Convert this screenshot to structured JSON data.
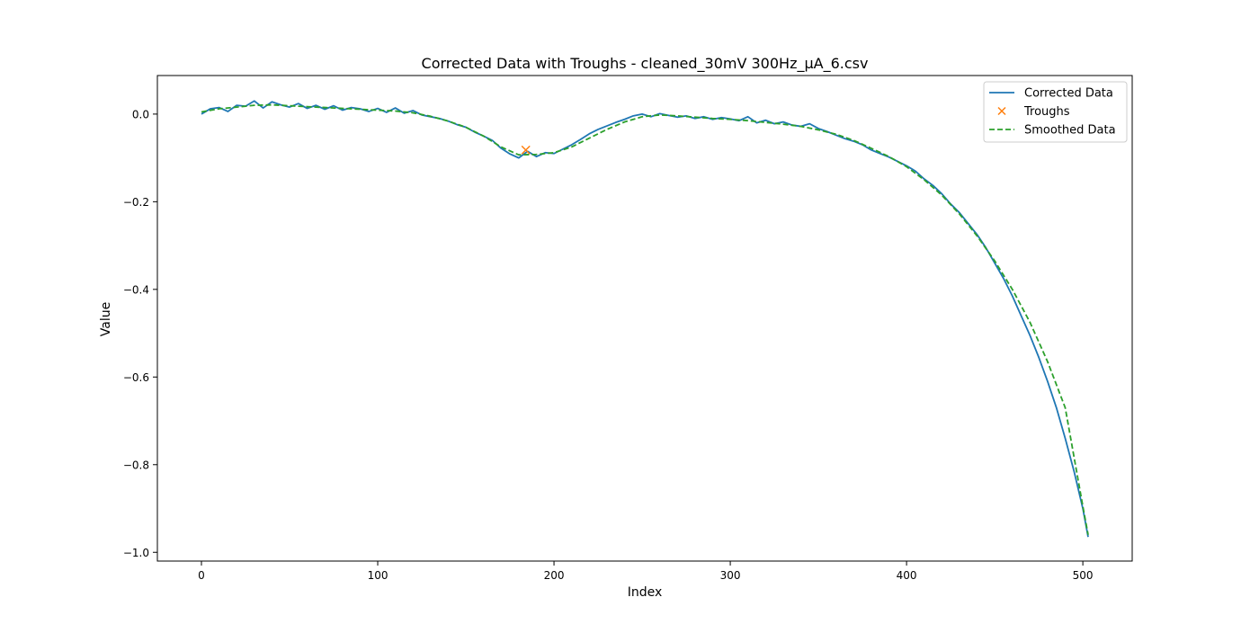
{
  "chart_data": {
    "type": "line",
    "title": "Corrected Data with Troughs - cleaned_30mV 300Hz_µA_6.csv",
    "xlabel": "Index",
    "ylabel": "Value",
    "xlim": [
      -25,
      528
    ],
    "ylim": [
      -1.02,
      0.088
    ],
    "xticks": [
      0,
      100,
      200,
      300,
      400,
      500
    ],
    "yticks": [
      0.0,
      -0.2,
      -0.4,
      -0.6,
      -0.8,
      -1.0
    ],
    "xtick_labels": [
      "0",
      "100",
      "200",
      "300",
      "400",
      "500"
    ],
    "ytick_labels": [
      "0.0",
      "−0.2",
      "−0.4",
      "−0.6",
      "−0.8",
      "−1.0"
    ],
    "grid": false,
    "legend_position": "top-right",
    "series": [
      {
        "name": "Corrected Data",
        "style": "solid",
        "color": "#1f77b4",
        "x": [
          0,
          5,
          10,
          15,
          20,
          25,
          30,
          35,
          40,
          45,
          50,
          55,
          60,
          65,
          70,
          75,
          80,
          85,
          90,
          95,
          100,
          105,
          110,
          115,
          120,
          125,
          130,
          135,
          140,
          145,
          150,
          155,
          160,
          165,
          170,
          175,
          180,
          185,
          190,
          195,
          200,
          205,
          210,
          215,
          220,
          225,
          230,
          235,
          240,
          245,
          250,
          255,
          260,
          265,
          270,
          275,
          280,
          285,
          290,
          295,
          300,
          305,
          310,
          315,
          320,
          325,
          330,
          335,
          340,
          345,
          350,
          355,
          360,
          365,
          370,
          375,
          380,
          385,
          390,
          395,
          400,
          405,
          410,
          415,
          420,
          425,
          430,
          435,
          440,
          445,
          450,
          455,
          460,
          465,
          470,
          475,
          480,
          485,
          490,
          495,
          500,
          503
        ],
        "y": [
          0.0,
          0.012,
          0.015,
          0.006,
          0.02,
          0.018,
          0.03,
          0.014,
          0.028,
          0.021,
          0.016,
          0.024,
          0.013,
          0.02,
          0.011,
          0.019,
          0.009,
          0.015,
          0.012,
          0.006,
          0.013,
          0.004,
          0.014,
          0.002,
          0.008,
          -0.002,
          -0.006,
          -0.01,
          -0.016,
          -0.024,
          -0.03,
          -0.041,
          -0.05,
          -0.06,
          -0.078,
          -0.091,
          -0.1,
          -0.085,
          -0.097,
          -0.088,
          -0.09,
          -0.08,
          -0.07,
          -0.058,
          -0.045,
          -0.035,
          -0.027,
          -0.019,
          -0.012,
          -0.004,
          0.0,
          -0.006,
          0.001,
          -0.003,
          -0.007,
          -0.004,
          -0.01,
          -0.006,
          -0.012,
          -0.008,
          -0.011,
          -0.015,
          -0.006,
          -0.02,
          -0.014,
          -0.022,
          -0.018,
          -0.025,
          -0.028,
          -0.022,
          -0.033,
          -0.04,
          -0.048,
          -0.056,
          -0.062,
          -0.07,
          -0.082,
          -0.09,
          -0.098,
          -0.108,
          -0.118,
          -0.13,
          -0.148,
          -0.163,
          -0.182,
          -0.205,
          -0.225,
          -0.25,
          -0.275,
          -0.305,
          -0.34,
          -0.375,
          -0.415,
          -0.46,
          -0.505,
          -0.555,
          -0.61,
          -0.67,
          -0.74,
          -0.815,
          -0.9,
          -0.965
        ]
      },
      {
        "name": "Troughs",
        "style": "marker-x",
        "color": "#ff7f0e",
        "x": [
          184
        ],
        "y": [
          -0.082
        ]
      },
      {
        "name": "Smoothed Data",
        "style": "dashed",
        "color": "#2ca02c",
        "x": [
          0,
          10,
          20,
          30,
          40,
          50,
          60,
          70,
          80,
          90,
          100,
          110,
          120,
          130,
          140,
          150,
          160,
          170,
          180,
          190,
          200,
          210,
          220,
          230,
          240,
          250,
          260,
          270,
          280,
          290,
          300,
          310,
          320,
          330,
          340,
          350,
          360,
          370,
          380,
          390,
          400,
          410,
          420,
          430,
          440,
          450,
          460,
          470,
          480,
          490,
          500,
          503
        ],
        "y": [
          0.005,
          0.012,
          0.016,
          0.02,
          0.021,
          0.019,
          0.017,
          0.015,
          0.013,
          0.011,
          0.009,
          0.007,
          0.003,
          -0.005,
          -0.016,
          -0.03,
          -0.05,
          -0.075,
          -0.093,
          -0.092,
          -0.088,
          -0.075,
          -0.055,
          -0.035,
          -0.018,
          -0.006,
          -0.002,
          -0.004,
          -0.007,
          -0.01,
          -0.012,
          -0.015,
          -0.019,
          -0.023,
          -0.028,
          -0.036,
          -0.046,
          -0.06,
          -0.078,
          -0.097,
          -0.12,
          -0.15,
          -0.185,
          -0.228,
          -0.278,
          -0.335,
          -0.4,
          -0.475,
          -0.565,
          -0.67,
          -0.895,
          -0.96
        ]
      }
    ]
  }
}
